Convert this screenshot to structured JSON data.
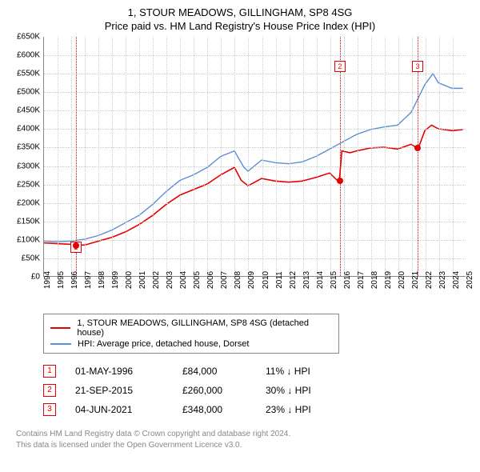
{
  "title": {
    "line1": "1, STOUR MEADOWS, GILLINGHAM, SP8 4SG",
    "line2": "Price paid vs. HM Land Registry's House Price Index (HPI)"
  },
  "chart": {
    "type": "line",
    "background_color": "#ffffff",
    "grid_color": "#cccccc",
    "axis_color": "#888888",
    "label_fontsize": 10,
    "x": {
      "min": 1994,
      "max": 2025,
      "ticks": [
        1994,
        1995,
        1996,
        1997,
        1998,
        1999,
        2000,
        2001,
        2002,
        2003,
        2004,
        2005,
        2006,
        2007,
        2008,
        2009,
        2010,
        2011,
        2012,
        2013,
        2014,
        2015,
        2016,
        2017,
        2018,
        2019,
        2020,
        2021,
        2022,
        2023,
        2024,
        2025
      ]
    },
    "y": {
      "min": 0,
      "max": 650000,
      "step": 50000,
      "prefix": "£",
      "suffix": "K",
      "ticks": [
        0,
        50000,
        100000,
        150000,
        200000,
        250000,
        300000,
        350000,
        400000,
        450000,
        500000,
        550000,
        600000,
        650000
      ]
    },
    "series": [
      {
        "name": "1, STOUR MEADOWS, GILLINGHAM, SP8 4SG (detached house)",
        "color": "#e60000",
        "line_width": 1.6,
        "data": [
          [
            1994.0,
            90000
          ],
          [
            1995.0,
            88000
          ],
          [
            1996.0,
            86000
          ],
          [
            1996.33,
            84000
          ],
          [
            1997.0,
            84000
          ],
          [
            1998.0,
            95000
          ],
          [
            1999.0,
            105000
          ],
          [
            2000.0,
            120000
          ],
          [
            2001.0,
            140000
          ],
          [
            2002.0,
            165000
          ],
          [
            2003.0,
            195000
          ],
          [
            2004.0,
            220000
          ],
          [
            2005.0,
            235000
          ],
          [
            2006.0,
            250000
          ],
          [
            2007.0,
            275000
          ],
          [
            2008.0,
            295000
          ],
          [
            2008.5,
            260000
          ],
          [
            2009.0,
            245000
          ],
          [
            2010.0,
            265000
          ],
          [
            2011.0,
            258000
          ],
          [
            2012.0,
            255000
          ],
          [
            2013.0,
            258000
          ],
          [
            2014.0,
            268000
          ],
          [
            2015.0,
            280000
          ],
          [
            2015.7,
            255000
          ],
          [
            2015.72,
            260000
          ],
          [
            2015.9,
            340000
          ],
          [
            2016.5,
            335000
          ],
          [
            2017.0,
            340000
          ],
          [
            2018.0,
            348000
          ],
          [
            2019.0,
            350000
          ],
          [
            2020.0,
            345000
          ],
          [
            2021.0,
            358000
          ],
          [
            2021.42,
            348000
          ],
          [
            2021.6,
            355000
          ],
          [
            2022.0,
            395000
          ],
          [
            2022.5,
            410000
          ],
          [
            2023.0,
            400000
          ],
          [
            2024.0,
            395000
          ],
          [
            2024.8,
            398000
          ]
        ]
      },
      {
        "name": "HPI: Average price, detached house, Dorset",
        "color": "#5b8fd6",
        "line_width": 1.4,
        "data": [
          [
            1994.0,
            95000
          ],
          [
            1995.0,
            93000
          ],
          [
            1996.0,
            95000
          ],
          [
            1997.0,
            100000
          ],
          [
            1998.0,
            110000
          ],
          [
            1999.0,
            125000
          ],
          [
            2000.0,
            145000
          ],
          [
            2001.0,
            165000
          ],
          [
            2002.0,
            195000
          ],
          [
            2003.0,
            230000
          ],
          [
            2004.0,
            260000
          ],
          [
            2005.0,
            275000
          ],
          [
            2006.0,
            295000
          ],
          [
            2007.0,
            325000
          ],
          [
            2008.0,
            340000
          ],
          [
            2008.7,
            295000
          ],
          [
            2009.0,
            285000
          ],
          [
            2010.0,
            315000
          ],
          [
            2011.0,
            308000
          ],
          [
            2012.0,
            305000
          ],
          [
            2013.0,
            310000
          ],
          [
            2014.0,
            325000
          ],
          [
            2015.0,
            345000
          ],
          [
            2016.0,
            365000
          ],
          [
            2017.0,
            385000
          ],
          [
            2018.0,
            398000
          ],
          [
            2019.0,
            405000
          ],
          [
            2020.0,
            410000
          ],
          [
            2021.0,
            445000
          ],
          [
            2022.0,
            520000
          ],
          [
            2022.6,
            550000
          ],
          [
            2023.0,
            525000
          ],
          [
            2024.0,
            510000
          ],
          [
            2024.8,
            510000
          ]
        ]
      }
    ],
    "markers": [
      {
        "n": "1",
        "year": 1996.33,
        "value": 84000,
        "color": "#e60000",
        "box_y": 80000
      },
      {
        "n": "2",
        "year": 2015.72,
        "value": 260000,
        "color": "#e60000",
        "box_y": 570000
      },
      {
        "n": "3",
        "year": 2021.42,
        "value": 348000,
        "color": "#e60000",
        "box_y": 570000
      }
    ]
  },
  "legend": {
    "items": [
      {
        "color": "#e60000",
        "label": "1, STOUR MEADOWS, GILLINGHAM, SP8 4SG (detached house)"
      },
      {
        "color": "#5b8fd6",
        "label": "HPI: Average price, detached house, Dorset"
      }
    ]
  },
  "sales": [
    {
      "n": "1",
      "color": "#e60000",
      "date": "01-MAY-1996",
      "price": "£84,000",
      "delta": "11% ↓ HPI"
    },
    {
      "n": "2",
      "color": "#e60000",
      "date": "21-SEP-2015",
      "price": "£260,000",
      "delta": "30% ↓ HPI"
    },
    {
      "n": "3",
      "color": "#e60000",
      "date": "04-JUN-2021",
      "price": "£348,000",
      "delta": "23% ↓ HPI"
    }
  ],
  "attribution": {
    "line1": "Contains HM Land Registry data © Crown copyright and database right 2024.",
    "line2": "This data is licensed under the Open Government Licence v3.0."
  }
}
